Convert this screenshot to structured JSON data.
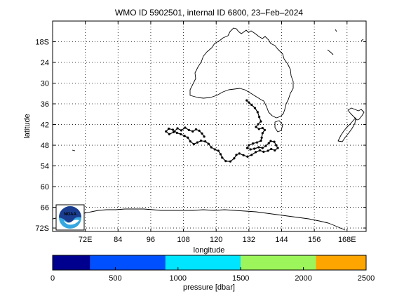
{
  "title": "WMO ID 5902501, internal ID 6800, 23–Feb–2024",
  "map": {
    "xlabel": "longitude",
    "ylabel": "latitude",
    "lon_range": [
      60,
      175
    ],
    "lat_range": [
      -73,
      -12
    ],
    "x_ticks": [
      72,
      84,
      96,
      108,
      120,
      132,
      144,
      156,
      168
    ],
    "x_tick_labels": [
      "72E",
      "84",
      "96",
      "108",
      "120",
      "132",
      "144",
      "156",
      "168E"
    ],
    "y_ticks": [
      -18,
      -24,
      -30,
      -36,
      -42,
      -48,
      -54,
      -60,
      -66,
      -72
    ],
    "y_tick_labels": [
      "18S",
      "24",
      "30",
      "36",
      "42",
      "48",
      "54",
      "60",
      "66",
      "72S"
    ],
    "grid": true,
    "logo": {
      "text": "NOAA",
      "colors": {
        "top": "#1a3d8f",
        "bottom": "#36a7e0"
      }
    },
    "trajectory_color": "#000000",
    "trajectory": [
      [
        131.2,
        -35.0
      ],
      [
        132.0,
        -35.6
      ],
      [
        133.0,
        -36.3
      ],
      [
        134.2,
        -37.2
      ],
      [
        135.2,
        -38.4
      ],
      [
        135.8,
        -39.8
      ],
      [
        136.4,
        -41.1
      ],
      [
        135.4,
        -41.9
      ],
      [
        134.6,
        -42.7
      ],
      [
        135.7,
        -43.3
      ],
      [
        137.0,
        -43.0
      ],
      [
        137.8,
        -43.6
      ],
      [
        137.0,
        -44.5
      ],
      [
        136.7,
        -45.8
      ],
      [
        136.4,
        -46.7
      ],
      [
        135.0,
        -47.2
      ],
      [
        133.5,
        -47.5
      ],
      [
        132.0,
        -48.0
      ],
      [
        131.4,
        -48.8
      ],
      [
        132.6,
        -49.2
      ],
      [
        134.0,
        -49.0
      ],
      [
        135.6,
        -48.6
      ],
      [
        137.0,
        -48.8
      ],
      [
        138.2,
        -48.2
      ],
      [
        139.3,
        -47.4
      ],
      [
        140.0,
        -46.8
      ],
      [
        141.3,
        -47.0
      ],
      [
        142.0,
        -48.0
      ],
      [
        142.6,
        -48.8
      ],
      [
        141.5,
        -49.5
      ],
      [
        140.2,
        -49.1
      ],
      [
        139.0,
        -49.6
      ],
      [
        137.4,
        -49.9
      ],
      [
        136.0,
        -49.5
      ],
      [
        134.5,
        -50.0
      ],
      [
        133.0,
        -50.8
      ],
      [
        131.5,
        -51.3
      ],
      [
        130.0,
        -50.9
      ],
      [
        128.5,
        -50.4
      ],
      [
        127.4,
        -50.8
      ],
      [
        126.6,
        -51.8
      ],
      [
        125.2,
        -52.7
      ],
      [
        123.5,
        -52.6
      ],
      [
        122.2,
        -51.6
      ],
      [
        121.6,
        -50.6
      ],
      [
        120.8,
        -49.6
      ],
      [
        119.5,
        -49.2
      ],
      [
        118.2,
        -48.6
      ],
      [
        117.2,
        -47.6
      ],
      [
        116.0,
        -46.9
      ],
      [
        114.4,
        -46.7
      ],
      [
        113.1,
        -47.2
      ],
      [
        111.8,
        -47.7
      ],
      [
        110.5,
        -46.9
      ],
      [
        109.6,
        -45.8
      ],
      [
        108.4,
        -45.3
      ],
      [
        107.0,
        -44.8
      ],
      [
        105.6,
        -44.4
      ],
      [
        104.1,
        -43.5
      ],
      [
        102.6,
        -43.2
      ],
      [
        101.6,
        -44.0
      ],
      [
        102.8,
        -44.8
      ],
      [
        104.4,
        -44.2
      ],
      [
        105.8,
        -43.1
      ],
      [
        107.2,
        -43.7
      ],
      [
        108.6,
        -42.9
      ],
      [
        110.0,
        -43.6
      ],
      [
        111.4,
        -44.0
      ],
      [
        112.6,
        -43.4
      ],
      [
        113.8,
        -43.8
      ],
      [
        114.8,
        -44.6
      ],
      [
        115.6,
        -45.5
      ]
    ]
  },
  "colorbar": {
    "label": "pressure [dbar]",
    "ticks": [
      0,
      500,
      1000,
      1500,
      2000,
      2500
    ],
    "bands": [
      {
        "from": 0,
        "to": 300,
        "color": "#00008f"
      },
      {
        "from": 300,
        "to": 900,
        "color": "#0050ff"
      },
      {
        "from": 900,
        "to": 1500,
        "color": "#00e5ff"
      },
      {
        "from": 1500,
        "to": 2100,
        "color": "#9cf55a"
      },
      {
        "from": 2100,
        "to": 2500,
        "color": "#ffa500"
      }
    ]
  }
}
